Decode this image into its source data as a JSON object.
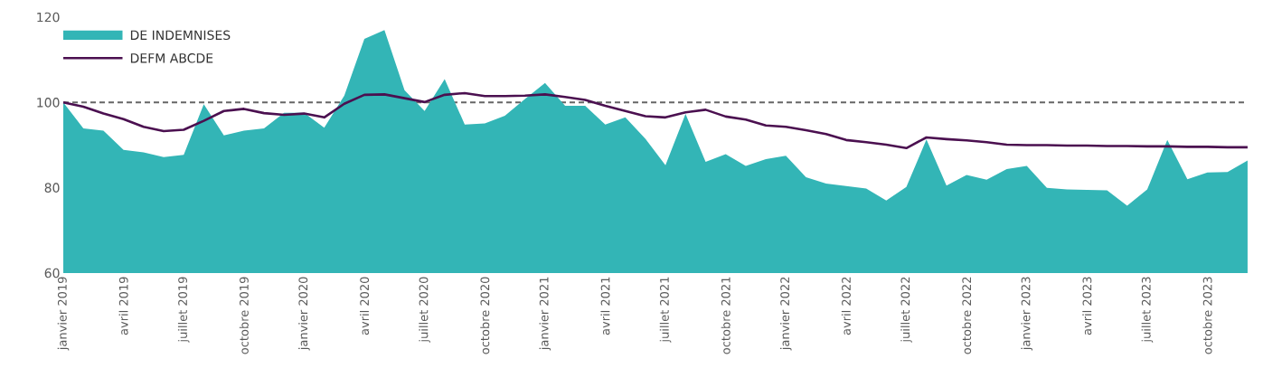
{
  "chart_data": {
    "type": "area",
    "categories": [
      "janvier 2019",
      null,
      null,
      "avril 2019",
      null,
      null,
      "juillet 2019",
      null,
      null,
      "octobre 2019",
      null,
      null,
      "janvier 2020",
      null,
      null,
      "avril 2020",
      null,
      null,
      "juillet 2020",
      null,
      null,
      "octobre 2020",
      null,
      null,
      "janvier 2021",
      null,
      null,
      "avril 2021",
      null,
      null,
      "juillet 2021",
      null,
      null,
      "octobre 2021",
      null,
      null,
      "janvier 2022",
      null,
      null,
      "avril 2022",
      null,
      null,
      "juillet 2022",
      null,
      null,
      "octobre 2022",
      null,
      null,
      "janvier 2023",
      null,
      null,
      "avril 2023",
      null,
      null,
      "juillet 2023",
      null,
      null,
      "octobre 2023",
      null,
      null
    ],
    "series": [
      {
        "name": "DE INDEMNISES",
        "color": "#33b5b6",
        "values": [
          100,
          93.9,
          93.4,
          88.9,
          88.3,
          87.2,
          87.7,
          99.6,
          92.3,
          93.4,
          93.9,
          97.6,
          97.6,
          94.1,
          101.6,
          114.9,
          117.0,
          102.9,
          98.0,
          105.5,
          94.8,
          95.1,
          96.9,
          100.8,
          104.6,
          99.2,
          99.2,
          94.8,
          96.5,
          91.5,
          85.3,
          97.3,
          86.1,
          87.9,
          85.1,
          86.7,
          87.5,
          82.5,
          81.0,
          80.4,
          79.8,
          77.0,
          80.2,
          91.3,
          80.5,
          83.0,
          81.9,
          84.4,
          85.1,
          80.0,
          79.6,
          79.5,
          79.4,
          75.8,
          79.6,
          91.2,
          82.0,
          83.6,
          83.7,
          86.4
        ]
      },
      {
        "name": "DEFM ABCDE",
        "type": "line",
        "color": "#4b1050",
        "values": [
          100,
          99.0,
          97.4,
          96.1,
          94.3,
          93.3,
          93.6,
          95.7,
          98.0,
          98.5,
          97.5,
          97.1,
          97.4,
          96.5,
          99.7,
          101.8,
          101.9,
          101.0,
          100.1,
          101.8,
          102.2,
          101.5,
          101.5,
          101.6,
          101.9,
          101.3,
          100.6,
          99.2,
          98.0,
          96.8,
          96.5,
          97.7,
          98.3,
          96.7,
          96.0,
          94.6,
          94.3,
          93.5,
          92.6,
          91.2,
          90.7,
          90.1,
          89.3,
          91.8,
          91.4,
          91.1,
          90.7,
          90.1,
          90.0,
          90.0,
          89.9,
          89.9,
          89.8,
          89.8,
          89.7,
          89.7,
          89.6,
          89.6,
          89.5,
          89.5
        ]
      }
    ],
    "ylim": [
      60,
      120
    ],
    "yticks": [
      60,
      80,
      100,
      120
    ],
    "ref_lines": [
      {
        "axis": "y",
        "value": 100,
        "color": "#666666",
        "line_style": "dashed"
      }
    ],
    "legend": "top left"
  }
}
